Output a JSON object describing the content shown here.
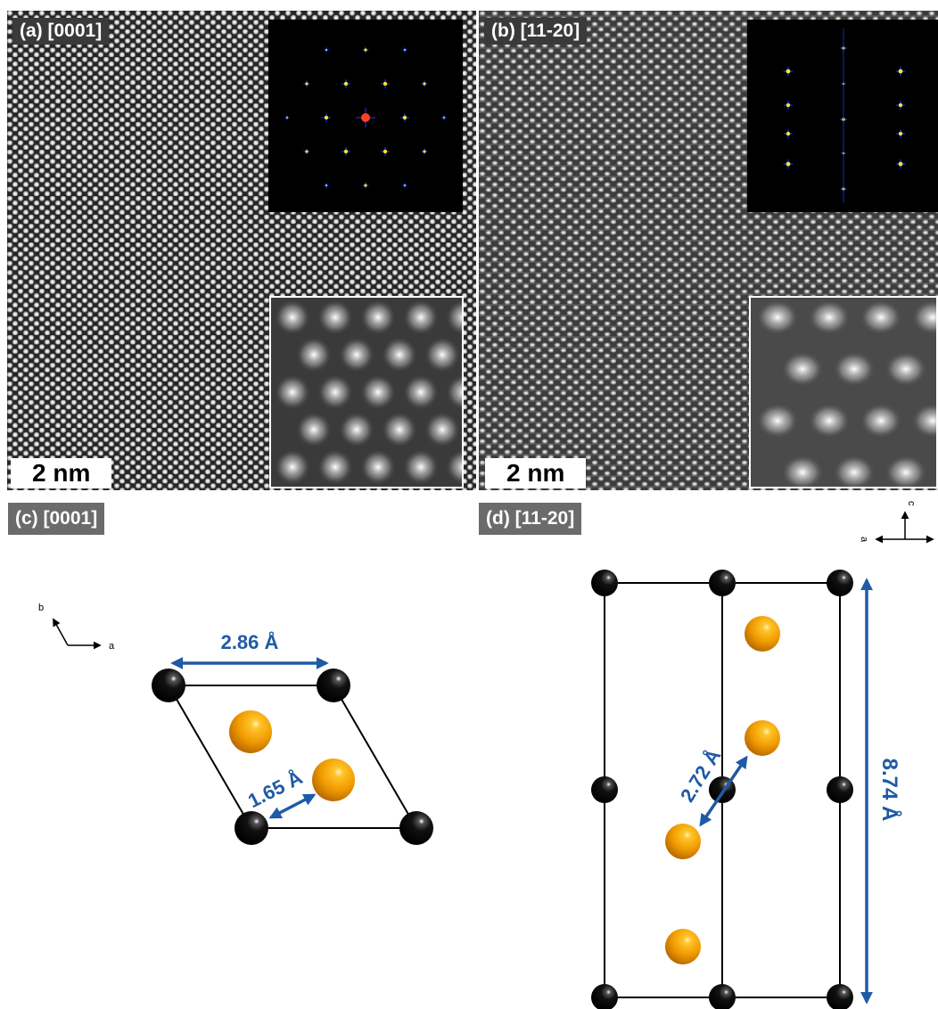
{
  "panels": {
    "a": {
      "label": "(a) [0001]",
      "scale_bar": "2 nm"
    },
    "b": {
      "label": "(b) [11-20]",
      "scale_bar": "2 nm"
    },
    "c": {
      "label": "(c) [0001]",
      "axis_b": "b",
      "axis_a": "a",
      "dim_top": "2.86 Å",
      "dim_diag": "1.65 Å"
    },
    "d": {
      "label": "(d) [11-20]",
      "axis_c": "c",
      "axis_a": "a",
      "dim_height": "8.74 Å",
      "dim_diag": "2.72 Å"
    }
  },
  "colors": {
    "label_bg": "#6b6b6b",
    "dimension": "#1f5aa6",
    "atom_black": "#000000",
    "atom_gold": "#f0a000"
  }
}
